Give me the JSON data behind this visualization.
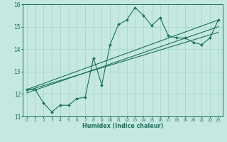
{
  "xlabel": "Humidex (Indice chaleur)",
  "ylabel": "",
  "xlim": [
    -0.5,
    23.5
  ],
  "ylim": [
    11,
    16
  ],
  "yticks": [
    11,
    12,
    13,
    14,
    15,
    16
  ],
  "xticks": [
    0,
    1,
    2,
    3,
    4,
    5,
    6,
    7,
    8,
    9,
    10,
    11,
    12,
    13,
    14,
    15,
    16,
    17,
    18,
    19,
    20,
    21,
    22,
    23
  ],
  "background_color": "#c5e8e0",
  "grid_color": "#aad4cc",
  "line_color": "#1a7060",
  "series_x": [
    0,
    1,
    2,
    3,
    4,
    5,
    6,
    7,
    8,
    9,
    10,
    11,
    12,
    13,
    14,
    15,
    16,
    17,
    18,
    19,
    20,
    21,
    22,
    23
  ],
  "series_y": [
    12.2,
    12.2,
    11.6,
    11.2,
    11.5,
    11.5,
    11.8,
    11.85,
    13.6,
    12.4,
    14.2,
    15.1,
    15.3,
    15.85,
    15.5,
    15.05,
    15.4,
    14.6,
    14.5,
    14.5,
    14.3,
    14.2,
    14.5,
    15.3
  ],
  "trend_lines": [
    {
      "x": [
        0,
        23
      ],
      "y": [
        12.05,
        15.0
      ]
    },
    {
      "x": [
        0,
        23
      ],
      "y": [
        12.15,
        14.75
      ]
    },
    {
      "x": [
        0,
        23
      ],
      "y": [
        12.2,
        15.3
      ]
    }
  ]
}
